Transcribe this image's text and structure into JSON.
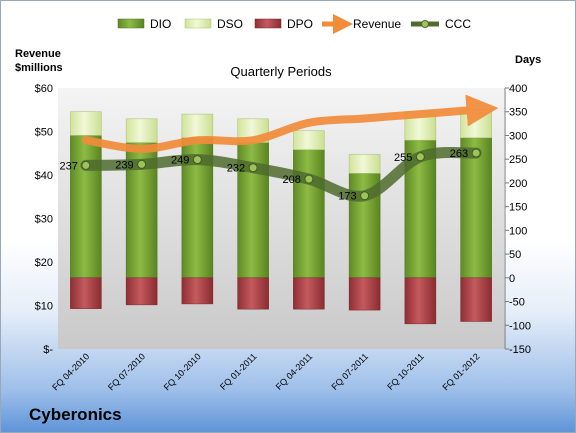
{
  "chart_data": {
    "type": "bar",
    "title": "Quarterly Periods",
    "company": "Cyberonics",
    "left_axis": {
      "label_lines": [
        "Revenue",
        "$millions"
      ],
      "ylim": [
        0,
        60
      ],
      "ticks": [
        0,
        10,
        20,
        30,
        40,
        50,
        60
      ],
      "tick_labels": [
        "$-",
        "$10",
        "$20",
        "$30",
        "$40",
        "$50",
        "$60"
      ]
    },
    "right_axis": {
      "label": "Days",
      "ylim": [
        -150,
        400
      ],
      "ticks": [
        -150,
        -100,
        -50,
        0,
        50,
        100,
        150,
        200,
        250,
        300,
        350,
        400
      ],
      "tick_labels": [
        "-150",
        "-100",
        "-50",
        "0",
        "50",
        "100",
        "150",
        "200",
        "250",
        "300",
        "350",
        "400"
      ]
    },
    "categories": [
      "FQ 04-2010",
      "FQ 07-2010",
      "FQ 10-2010",
      "FQ 01-2011",
      "FQ 04-2011",
      "FQ 07-2011",
      "FQ 10-2011",
      "FQ 01-2012"
    ],
    "series": [
      {
        "name": "DIO",
        "axis": "right",
        "color": "#7fa63a",
        "values": [
          300,
          285,
          295,
          285,
          270,
          220,
          290,
          295
        ]
      },
      {
        "name": "DSO",
        "axis": "right",
        "color": "#e3efbd",
        "values": [
          50,
          50,
          50,
          50,
          40,
          40,
          60,
          60
        ]
      },
      {
        "name": "DPO",
        "axis": "right",
        "color": "#b5474c",
        "values": [
          -65,
          -57,
          -55,
          -66,
          -66,
          -68,
          -97,
          -92
        ]
      },
      {
        "name": "Revenue",
        "axis": "left",
        "color": "#f28c3a",
        "values": [
          48,
          46,
          48,
          48,
          52,
          53,
          54,
          55
        ]
      },
      {
        "name": "CCC",
        "axis": "right",
        "color": "#4f6b2e",
        "values": [
          237,
          239,
          249,
          232,
          208,
          173,
          255,
          263
        ]
      }
    ],
    "ccc_labels": [
      "237",
      "239",
      "249",
      "232",
      "208",
      "173",
      "255",
      "263"
    ],
    "legend_position": "top",
    "grid": false
  }
}
